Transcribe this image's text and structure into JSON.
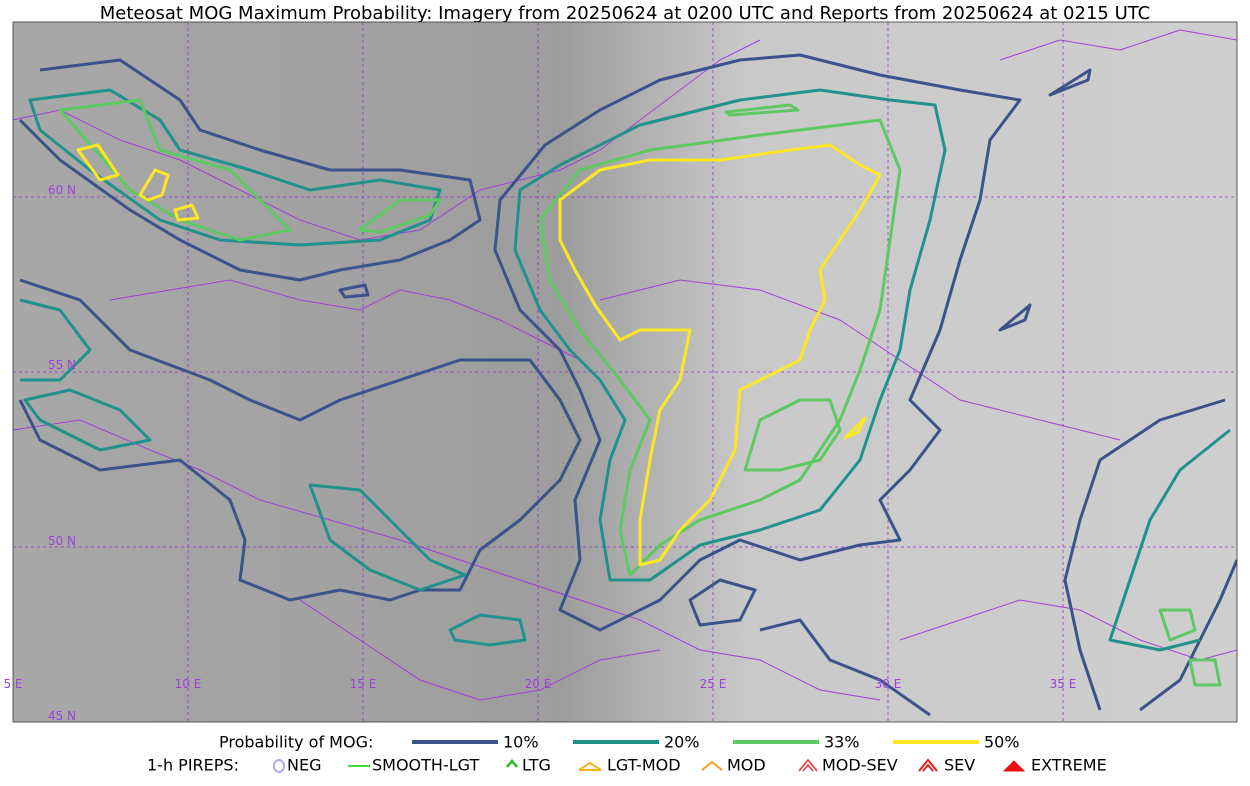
{
  "title": "Meteosat MOG Maximum Probability: Imagery from 20250624 at 0200 UTC and Reports from 20250624 at 0215 UTC",
  "grid_labels": {
    "latitudes": [
      "60 N",
      "55 N",
      "50 N",
      "45 N"
    ],
    "longitudes": [
      "5 E",
      "10 E",
      "15 E",
      "20 E",
      "25 E",
      "30 E",
      "35 E"
    ]
  },
  "legend": {
    "probability": {
      "label": "Probability of MOG:",
      "items": [
        {
          "label": "10%",
          "color": "#3b528b"
        },
        {
          "label": "20%",
          "color": "#21918c"
        },
        {
          "label": "33%",
          "color": "#5ec962"
        },
        {
          "label": "50%",
          "color": "#fde725"
        }
      ]
    },
    "pireps": {
      "label": "1-h PIREPS:",
      "items": [
        {
          "label": "NEG",
          "color": "#b0a8f0"
        },
        {
          "label": "SMOOTH-LGT",
          "color": "#3fdc3f"
        },
        {
          "label": "LTG",
          "color": "#22c022"
        },
        {
          "label": "LGT-MOD",
          "color": "#f2b01e"
        },
        {
          "label": "MOD",
          "color": "#f2a01e"
        },
        {
          "label": "MOD-SEV",
          "color": "#e83030"
        },
        {
          "label": "SEV",
          "color": "#e82020"
        },
        {
          "label": "EXTREME",
          "color": "#e81010"
        }
      ]
    }
  }
}
